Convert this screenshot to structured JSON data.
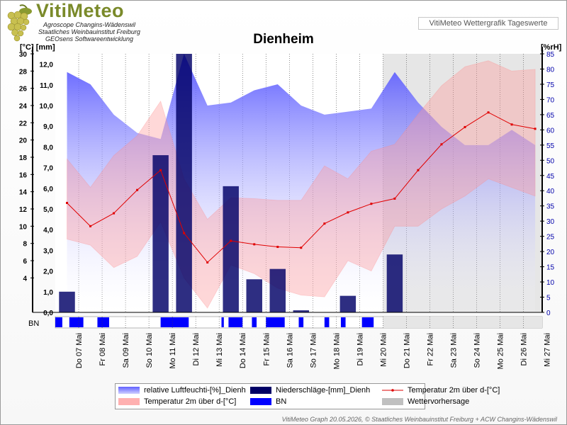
{
  "header": {
    "logo_title": "VitiMeteo",
    "logo_lines": [
      "Agroscope Changins-Wädenswil",
      "Staatliches Weinbauinstitut Freiburg",
      "GEOsens Softwareentwicklung"
    ],
    "top_right_box": "VitiMeteo Wettergrafik Tageswerte"
  },
  "footer": "VitiMeteo Graph 20.05.2026, © Staatliches Weinbauinstitut Freiburg + ACW Changins-Wädenswil",
  "chart_data": {
    "type": "line",
    "title": "Dienheim",
    "y_left_label": "[°C] [mm]",
    "y_right_label": "[%rH]",
    "y_left_temp_ticks": [
      "30",
      "28",
      "26",
      "24",
      "22",
      "20",
      "18",
      "16",
      "14",
      "12",
      "10",
      "8",
      "6",
      "4"
    ],
    "y_left_rain_ticks": [
      "12,0",
      "11,0",
      "10,0",
      "9,0",
      "8,0",
      "7,0",
      "6,0",
      "5,0",
      "4,0",
      "3,0",
      "2,0",
      "1,0",
      "0,0"
    ],
    "y_right_ticks": [
      "85",
      "80",
      "75",
      "70",
      "65",
      "60",
      "55",
      "50",
      "45",
      "40",
      "35",
      "30",
      "25",
      "20",
      "15",
      "10",
      "5",
      "0"
    ],
    "ylim_temp": [
      0,
      30
    ],
    "ylim_rain": [
      0,
      12.5
    ],
    "ylim_humidity": [
      0,
      85
    ],
    "categories": [
      "Do 07 Mai",
      "Fr 08 Mai",
      "Sa 09 Mai",
      "So 10 Mai",
      "Mo 11 Mai",
      "Di 12 Mai",
      "Mi 13 Mai",
      "Do 14 Mai",
      "Fr 15 Mai",
      "Sa 16 Mai",
      "So 17 Mai",
      "Mo 18 Mai",
      "Di 19 Mai",
      "Mi 20 Mai",
      "Do 21 Mai",
      "Fr 22 Mai",
      "Sa 23 Mai",
      "So 24 Mai",
      "Mo 25 Mai",
      "Di 26 Mai",
      "Mi 27 Mai"
    ],
    "forecast_from_day": 13.5,
    "humidity_max": [
      79,
      75,
      65,
      59,
      57,
      85,
      68,
      69,
      73,
      75,
      68,
      65,
      66,
      67,
      79,
      69,
      61,
      55,
      55,
      60,
      55
    ],
    "temp_max": [
      17.8,
      14.5,
      18.2,
      20.5,
      24.5,
      15.5,
      10.8,
      13.3,
      13.2,
      13.0,
      13.0,
      17.0,
      15.5,
      18.7,
      19.5,
      23.0,
      26.3,
      28.5,
      29.2,
      28.0,
      28.2
    ],
    "temp_min": [
      8.5,
      7.8,
      5.2,
      6.5,
      10.5,
      4.0,
      0.5,
      5.5,
      4.5,
      2.8,
      2.0,
      1.8,
      6.0,
      4.8,
      10.0,
      10.0,
      12.0,
      13.5,
      15.5,
      14.5,
      13.5
    ],
    "temp_mean": [
      12.7,
      10.0,
      11.5,
      14.2,
      16.5,
      9.2,
      5.8,
      8.3,
      7.9,
      7.6,
      7.5,
      10.3,
      11.6,
      12.6,
      13.2,
      16.5,
      19.5,
      21.5,
      23.2,
      21.8,
      21.3
    ],
    "precipitation": [
      1.0,
      0,
      0,
      0,
      7.6,
      12.5,
      0,
      6.1,
      1.6,
      2.1,
      0.1,
      0,
      0.8,
      0,
      2.8,
      0,
      0,
      0,
      0,
      0,
      0
    ],
    "leaf_wetness": [
      [
        0.0,
        0.3
      ],
      [
        0.6,
        1.2
      ],
      [
        1.8,
        2.3
      ],
      [
        4.5,
        5.7
      ],
      [
        7.1,
        7.2
      ],
      [
        7.4,
        8.0
      ],
      [
        8.4,
        8.6
      ],
      [
        9.0,
        9.8
      ],
      [
        10.4,
        10.6
      ],
      [
        11.5,
        11.7
      ],
      [
        12.2,
        12.4
      ],
      [
        13.1,
        13.6
      ]
    ],
    "legend": [
      {
        "label": "relative Luftfeuchti-[%]_Dienh",
        "color": "#8080ff"
      },
      {
        "label": "Niederschläge-[mm]_Dienh",
        "color": "#000066"
      },
      {
        "label": "Temperatur 2m über d-[°C]",
        "color": "#ff0000"
      },
      {
        "label": "Temperatur 2m über d-[°C]",
        "color": "#ffb0b0"
      },
      {
        "label": "BN",
        "color": "#0000ff"
      },
      {
        "label": "Wettervorhersage",
        "color": "#c0c0c0"
      }
    ]
  }
}
